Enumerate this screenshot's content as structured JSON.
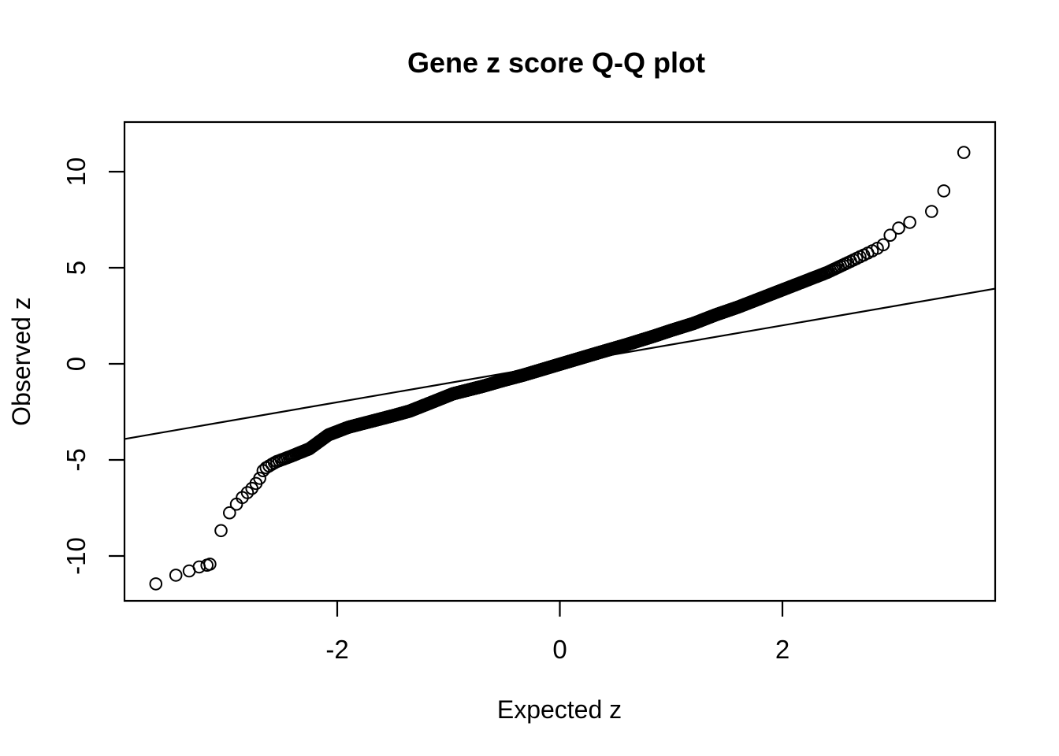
{
  "title": "Gene z score Q-Q plot",
  "colors": {
    "foreground": "#000000",
    "background": "#ffffff"
  },
  "chart_data": {
    "type": "scatter",
    "title": "Gene z score Q-Q plot",
    "xlabel": "Expected z",
    "ylabel": "Observed z",
    "xlim": [
      -3.91,
      3.91
    ],
    "ylim": [
      -12.34,
      12.58
    ],
    "x_ticks": [
      -2,
      0,
      2
    ],
    "y_ticks": [
      10,
      5,
      0,
      -5,
      -10
    ],
    "grid": false,
    "legend": false,
    "marker": {
      "shape": "open-circle",
      "color": "#000000",
      "radius_px": 7.3,
      "stroke_px": 2
    },
    "reference_line": {
      "slope": 1,
      "intercept": 0,
      "description": "y = x identity line"
    },
    "n_points": 3000,
    "point_generation": "expected z = normal quantiles qnorm((i+0.5)/n); observed z = monotone interpolation of curve_anchors",
    "curve_anchors": [
      [
        -3.7,
        -11.5
      ],
      [
        -3.48,
        -11.05
      ],
      [
        -3.33,
        -10.8
      ],
      [
        -3.22,
        -10.58
      ],
      [
        -3.14,
        -10.42
      ],
      [
        -3.11,
        -9.3
      ],
      [
        -3.07,
        -8.92
      ],
      [
        -3.03,
        -8.55
      ],
      [
        -3.0,
        -8.0
      ],
      [
        -2.95,
        -7.62
      ],
      [
        -2.91,
        -7.33
      ],
      [
        -2.87,
        -7.08
      ],
      [
        -2.83,
        -6.8
      ],
      [
        -2.78,
        -6.58
      ],
      [
        -2.74,
        -6.3
      ],
      [
        -2.7,
        -6.0
      ],
      [
        -2.66,
        -5.48
      ],
      [
        -2.55,
        -5.1
      ],
      [
        -2.42,
        -4.82
      ],
      [
        -2.25,
        -4.42
      ],
      [
        -2.08,
        -3.7
      ],
      [
        -1.9,
        -3.3
      ],
      [
        -1.7,
        -3.0
      ],
      [
        -1.5,
        -2.7
      ],
      [
        -1.35,
        -2.46
      ],
      [
        -1.15,
        -2.0
      ],
      [
        -0.96,
        -1.56
      ],
      [
        -0.7,
        -1.18
      ],
      [
        -0.5,
        -0.85
      ],
      [
        -0.33,
        -0.59
      ],
      [
        0.0,
        -0.02
      ],
      [
        0.35,
        0.58
      ],
      [
        0.6,
        1.0
      ],
      [
        0.85,
        1.45
      ],
      [
        1.0,
        1.74
      ],
      [
        1.2,
        2.1
      ],
      [
        1.4,
        2.55
      ],
      [
        1.6,
        2.95
      ],
      [
        1.8,
        3.4
      ],
      [
        2.0,
        3.85
      ],
      [
        2.2,
        4.3
      ],
      [
        2.4,
        4.75
      ],
      [
        2.6,
        5.3
      ],
      [
        2.78,
        5.8
      ],
      [
        2.9,
        6.15
      ],
      [
        2.96,
        6.65
      ],
      [
        3.03,
        7.02
      ],
      [
        3.12,
        7.3
      ],
      [
        3.22,
        7.55
      ],
      [
        3.3,
        7.76
      ],
      [
        3.4,
        8.0
      ],
      [
        3.5,
        9.0
      ],
      [
        3.7,
        11.0
      ]
    ],
    "tail_points": [
      [
        -3.63,
        -11.45
      ],
      [
        -3.45,
        -11.0
      ],
      [
        -3.33,
        -10.78
      ],
      [
        -3.24,
        -10.57
      ],
      [
        -3.17,
        -10.48
      ],
      [
        3.34,
        7.93
      ],
      [
        3.45,
        9.0
      ],
      [
        3.63,
        11.0
      ]
    ]
  }
}
